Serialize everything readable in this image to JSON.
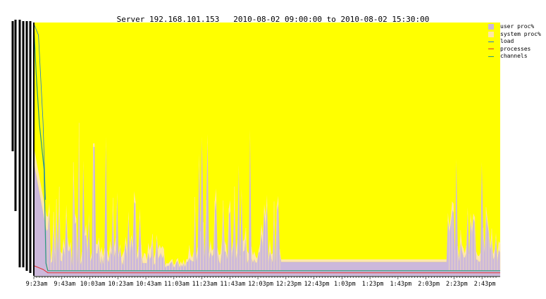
{
  "chart_data": {
    "type": "area",
    "title": "Server 192.168.101.153   2010-08-02 09:00:00 to 2010-08-02 15:30:00",
    "x_tick_labels": [
      "9:23am",
      "9:43am",
      "10:03am",
      "10:23am",
      "10:43am",
      "11:03am",
      "11:23am",
      "11:43am",
      "12:03pm",
      "12:23pm",
      "12:43pm",
      "1:03pm",
      "1:23pm",
      "1:43pm",
      "2:03pm",
      "2:23pm",
      "2:43pm"
    ],
    "x_range": [
      "9:23am",
      "2:56pm"
    ],
    "grid": false,
    "legend_placement": "top-right",
    "colors": {
      "plot_background": "#ffff00",
      "user_proc": "#ccb8db",
      "system_proc": "#ffe8a8",
      "load": "#1b7bd6",
      "processes": "#e03030",
      "channels": "#2a9a7a"
    },
    "series": [
      {
        "name": "user proc%",
        "kind": "area"
      },
      {
        "name": "system proc%",
        "kind": "area"
      },
      {
        "name": "load",
        "kind": "line"
      },
      {
        "name": "processes",
        "kind": "line"
      },
      {
        "name": "channels",
        "kind": "line"
      }
    ]
  }
}
